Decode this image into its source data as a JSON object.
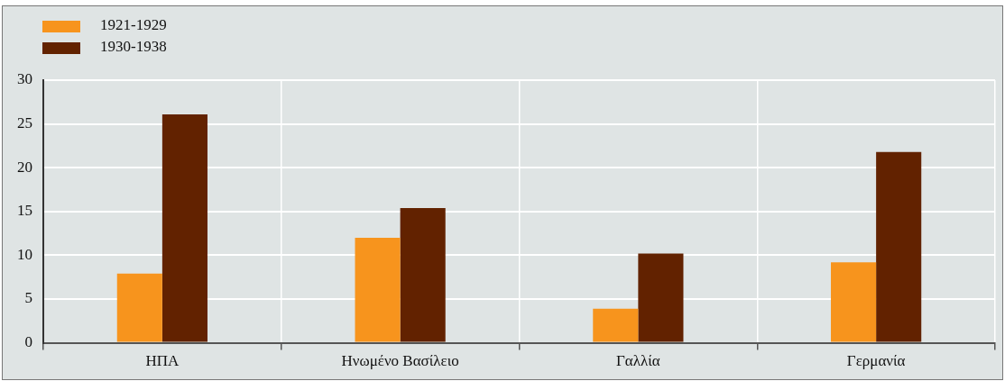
{
  "chart_data": {
    "type": "bar",
    "categories": [
      "ΗΠΑ",
      "Ηνωμένο Βασίλειο",
      "Γαλλία",
      "Γερμανία"
    ],
    "series": [
      {
        "name": "1921-1929",
        "color": "#f7941d",
        "values": [
          7.9,
          12,
          3.9,
          9.2
        ]
      },
      {
        "name": "1930-1938",
        "color": "#622200",
        "values": [
          26.1,
          15.4,
          10.2,
          21.8
        ]
      }
    ],
    "ylim": [
      0,
      30
    ],
    "yticks": [
      0,
      5,
      10,
      15,
      20,
      25,
      30
    ],
    "grid": true,
    "legend": "top left"
  }
}
